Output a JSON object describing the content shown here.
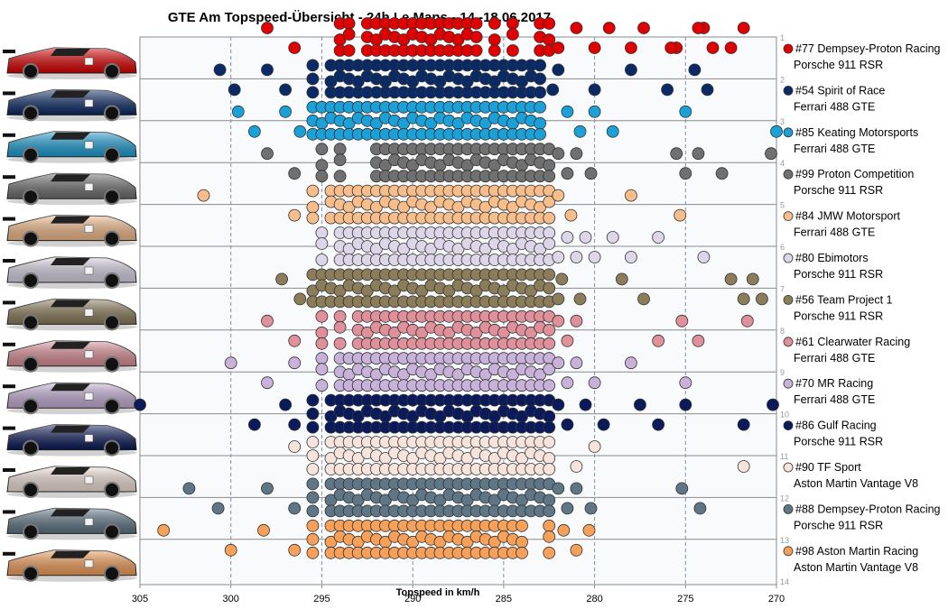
{
  "chart_data": {
    "type": "scatter",
    "title": "GTE Am  Topspeed-Übersicht  - 24h Le Mans  - 14.-18.06.2017",
    "xlabel": "Topspeed in km/h",
    "x_ticks": [
      "305",
      "300",
      "295",
      "290",
      "285",
      "280",
      "275",
      "270"
    ],
    "x_range": [
      305,
      270
    ],
    "x_reversed": true,
    "y_ticks": [
      "1",
      "2",
      "3",
      "4",
      "5",
      "6",
      "7",
      "8",
      "9",
      "10",
      "11",
      "12",
      "13",
      "14"
    ],
    "y_range": [
      1,
      14
    ],
    "grid": true,
    "legend_position": "right",
    "series": [
      {
        "name": "#77 Dempsey-Proton Racing",
        "car": "Porsche 911 RSR",
        "row": 1,
        "color": "#e00000",
        "values": [
          298,
          296.5,
          294,
          293.5,
          292.5,
          292,
          291.5,
          291,
          290.5,
          290,
          289.5,
          289,
          288.5,
          288,
          287.5,
          287,
          286.5,
          285.5,
          284.5,
          283,
          282.5,
          282,
          281,
          280,
          279.2,
          278,
          277.3,
          275.5,
          274,
          272.5,
          271.8,
          275.8,
          274.3,
          273.5
        ]
      },
      {
        "name": "#54 Spirit of Race",
        "car": "Ferrari 488 GTE",
        "row": 2,
        "color": "#0a2a66",
        "values": [
          300.6,
          299.8,
          298,
          297,
          295.5,
          294.5,
          294,
          293.5,
          293,
          292.5,
          292,
          291.5,
          291,
          290.5,
          290,
          289.5,
          289,
          288.5,
          288,
          287.5,
          287,
          286.5,
          286,
          285.5,
          285,
          284.5,
          284,
          283.5,
          283,
          282.3,
          282,
          280,
          278,
          276,
          274.5,
          273.8
        ]
      },
      {
        "name": "#85 Keating Motorsports",
        "car": "Ferrari 488 GTE",
        "row": 3,
        "color": "#1ca0d8",
        "values": [
          299.6,
          298.7,
          297,
          296.2,
          295.5,
          295,
          294.5,
          294,
          293.5,
          293,
          292.5,
          292,
          291.5,
          291,
          290.5,
          290,
          289.5,
          289,
          288.5,
          288,
          287.5,
          287,
          286.5,
          286,
          285.5,
          285,
          284.5,
          284,
          283.5,
          283,
          281.5,
          280.8,
          280,
          279,
          275,
          270
        ]
      },
      {
        "name": "#99 Proton Competition",
        "car": "Porsche 911 RSR",
        "row": 4,
        "color": "#707070",
        "values": [
          298,
          296.5,
          295,
          294,
          292,
          291.5,
          291,
          290.5,
          290,
          289.5,
          289,
          288.5,
          288,
          287.5,
          287,
          286.5,
          286,
          285.5,
          285,
          284.5,
          284,
          283.5,
          283,
          282.5,
          282,
          281.5,
          281,
          280.2,
          275.5,
          275,
          274.3,
          273,
          270.3
        ]
      },
      {
        "name": "#84 JMW Motorsport",
        "car": "Ferrari 488 GTE",
        "row": 5,
        "color": "#f7be8c",
        "values": [
          301.5,
          296.5,
          295.5,
          294.5,
          294,
          293.5,
          293,
          292.5,
          292,
          291.5,
          291,
          290.5,
          290,
          289.5,
          289,
          288.5,
          288,
          287.5,
          287,
          286.5,
          286,
          285.5,
          285,
          284.5,
          284,
          283.5,
          283,
          282.5,
          282,
          281.3,
          278,
          275.3
        ]
      },
      {
        "name": "#80 Ebimotors",
        "car": "Porsche 911 RSR",
        "row": 6,
        "color": "#dcd6e8",
        "values": [
          295,
          294,
          293.5,
          293,
          292.5,
          292,
          291.5,
          291,
          290.5,
          290,
          289.5,
          289,
          288.5,
          288,
          287.5,
          287,
          286.5,
          286,
          285.5,
          285,
          284.5,
          284,
          283.5,
          283,
          282.5,
          282,
          281.5,
          281,
          280.5,
          280,
          279,
          278,
          276.5,
          274
        ]
      },
      {
        "name": "#56 Team Project 1",
        "car": "Porsche 911 RSR",
        "row": 7,
        "color": "#8c7d5a",
        "values": [
          297.2,
          296.2,
          295.5,
          295,
          294.5,
          294,
          293.5,
          293,
          292.5,
          292,
          291.5,
          291,
          290.5,
          290,
          289.5,
          289,
          288.5,
          288,
          287.5,
          287,
          286.5,
          286,
          285.5,
          285,
          284.5,
          284,
          283.5,
          283,
          282.5,
          282,
          281.8,
          280.8,
          278.5,
          277.3,
          272.5,
          271.8,
          271.3,
          270.8
        ]
      },
      {
        "name": "#61 Clearwater Racing",
        "car": "Ferrari 488 GTE",
        "row": 8,
        "color": "#e0909a",
        "values": [
          298,
          296.5,
          295,
          294,
          293,
          292.5,
          292,
          291.5,
          291,
          290.5,
          290,
          289.5,
          289,
          288.5,
          288,
          287.5,
          287,
          286.5,
          286,
          285.5,
          285,
          284.5,
          284,
          283.5,
          283,
          282.5,
          282,
          281.5,
          281,
          276.5,
          275.2,
          274.3,
          271.6
        ]
      },
      {
        "name": "#70 MR Racing",
        "car": "Ferrari 488 GTE",
        "row": 9,
        "color": "#c8b2da",
        "values": [
          300,
          298,
          296.5,
          295,
          294,
          293.5,
          293,
          292.5,
          292,
          291.5,
          291,
          290.5,
          290,
          289.5,
          289,
          288.5,
          288,
          287.5,
          287,
          286.5,
          286,
          285.5,
          285,
          284.5,
          284,
          283.5,
          283,
          282.5,
          282,
          281.5,
          281,
          280,
          278,
          275
        ]
      },
      {
        "name": "#86 Gulf Racing",
        "car": "Porsche 911 RSR",
        "row": 10,
        "color": "#0b1a5a",
        "values": [
          305,
          298.7,
          297,
          296.5,
          295.5,
          294.5,
          294,
          293.5,
          293,
          292.5,
          292,
          291.5,
          291,
          290.5,
          290,
          289.5,
          289,
          288.5,
          288,
          287.5,
          287,
          286.5,
          286,
          285.5,
          285,
          284.5,
          284,
          283.5,
          283,
          282.5,
          282,
          281.5,
          280.5,
          279.5,
          277.5,
          276.5,
          275,
          271.8,
          270.2
        ]
      },
      {
        "name": "#90 TF Sport",
        "car": "Aston Martin Vantage V8",
        "row": 11,
        "color": "#f6e4dc",
        "values": [
          296.5,
          295.5,
          294.5,
          294,
          293.5,
          293,
          292.5,
          292,
          291.5,
          291,
          290.5,
          290,
          289.5,
          289,
          288.5,
          288,
          287.5,
          287,
          286.5,
          286,
          285.5,
          285,
          284.5,
          284,
          283.5,
          283,
          282.5,
          281,
          280,
          271.8
        ]
      },
      {
        "name": "#88 Dempsey-Proton Racing",
        "car": "Porsche 911 RSR",
        "row": 12,
        "color": "#5f7686",
        "values": [
          302.3,
          300.7,
          298,
          296.5,
          295.5,
          294.5,
          294,
          293.5,
          293,
          292.5,
          292,
          291.5,
          291,
          290.5,
          290,
          289.5,
          289,
          288.5,
          288,
          287.5,
          287,
          286.5,
          286,
          285.5,
          285,
          284.5,
          284,
          283.5,
          283,
          282.5,
          282,
          281.5,
          281,
          280.2,
          275.2,
          274.2
        ]
      },
      {
        "name": "#98 Aston Martin Racing",
        "car": "Aston Martin Vantage V8",
        "row": 13,
        "color": "#f7a05a",
        "values": [
          303.7,
          300,
          298.2,
          296.5,
          295.5,
          294.5,
          294,
          293.5,
          293,
          292.5,
          292,
          291.5,
          291,
          290.5,
          290,
          289.5,
          289,
          288.5,
          288,
          287.5,
          287,
          286.5,
          286,
          285.5,
          285,
          284.5,
          284,
          282.5,
          281.7,
          281,
          280.3
        ]
      }
    ]
  }
}
